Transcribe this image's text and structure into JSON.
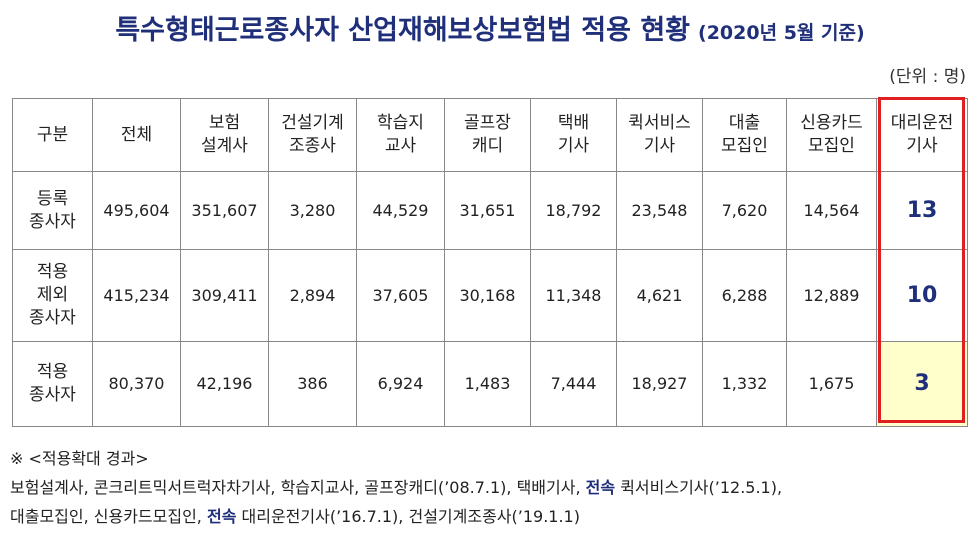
{
  "title": {
    "main": "특수형태근로종사자 산업재해보상보험법 적용 현황",
    "sub": "(2020년 5월 기준)"
  },
  "unit": "(단위 : 명)",
  "table": {
    "headers": [
      "구분",
      "전체",
      "보험\n설계사",
      "건설기계\n조종사",
      "학습지\n교사",
      "골프장\n캐디",
      "택배\n기사",
      "퀵서비스\n기사",
      "대출\n모집인",
      "신용카드\n모집인",
      "대리운전\n기사"
    ],
    "rows": [
      {
        "label": "등록\n종사자",
        "values": [
          "495,604",
          "351,607",
          "3,280",
          "44,529",
          "31,651",
          "18,792",
          "23,548",
          "7,620",
          "14,564",
          "13"
        ]
      },
      {
        "label": "적용\n제외\n종사자",
        "values": [
          "415,234",
          "309,411",
          "2,894",
          "37,605",
          "30,168",
          "11,348",
          "4,621",
          "6,288",
          "12,889",
          "10"
        ]
      },
      {
        "label": "적용\n종사자",
        "values": [
          "80,370",
          "42,196",
          "386",
          "6,924",
          "1,483",
          "7,444",
          "18,927",
          "1,332",
          "1,675",
          "3"
        ]
      }
    ]
  },
  "notes": {
    "heading": "※ <적용확대 경과>",
    "line1_a": "보험설계사, 콘크리트믹서트럭자차기사, 학습지교사, 골프장캐디(’08.7.1), 택배기사, ",
    "line1_bold": "전속",
    "line1_b": " 퀵서비스기사(’12.5.1),",
    "line2_a": "대출모집인, 신용카드모집인, ",
    "line2_bold": "전속",
    "line2_b": " 대리운전기사(’16.7.1), 건설기계조종사(’19.1.1)"
  }
}
